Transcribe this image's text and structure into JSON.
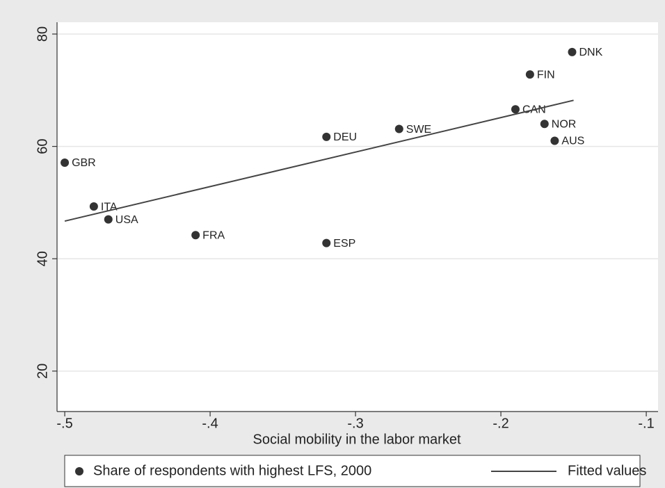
{
  "chart_data": {
    "type": "scatter",
    "xlabel": "Social mobility in the labor market",
    "xlim": [
      -0.5053,
      -0.0919
    ],
    "ylim": [
      12.8,
      82.1
    ],
    "xticks": [
      {
        "value": -0.5,
        "label": "-.5"
      },
      {
        "value": -0.4,
        "label": "-.4"
      },
      {
        "value": -0.3,
        "label": "-.3"
      },
      {
        "value": -0.2,
        "label": "-.2"
      },
      {
        "value": -0.1,
        "label": "-.1"
      }
    ],
    "yticks": [
      20,
      40,
      60,
      80
    ],
    "grid": true,
    "series": [
      {
        "name": "Share of respondents with highest LFS, 2000",
        "type": "scatter",
        "color": "#333333",
        "labels": [
          "GBR",
          "ITA",
          "USA",
          "FRA",
          "ESP",
          "DEU",
          "SWE",
          "CAN",
          "FIN",
          "NOR",
          "AUS",
          "DNK"
        ],
        "x": [
          -0.5,
          -0.48,
          -0.47,
          -0.41,
          -0.32,
          -0.32,
          -0.27,
          -0.19,
          -0.18,
          -0.17,
          -0.163,
          -0.151
        ],
        "values": [
          57.1,
          49.3,
          47.0,
          44.2,
          42.8,
          61.7,
          63.1,
          66.6,
          72.8,
          64.0,
          61.0,
          76.8
        ]
      },
      {
        "name": "Fitted values",
        "type": "line",
        "color": "#444444",
        "x": [
          -0.5,
          -0.15
        ],
        "values": [
          46.7,
          68.2
        ]
      }
    ]
  }
}
